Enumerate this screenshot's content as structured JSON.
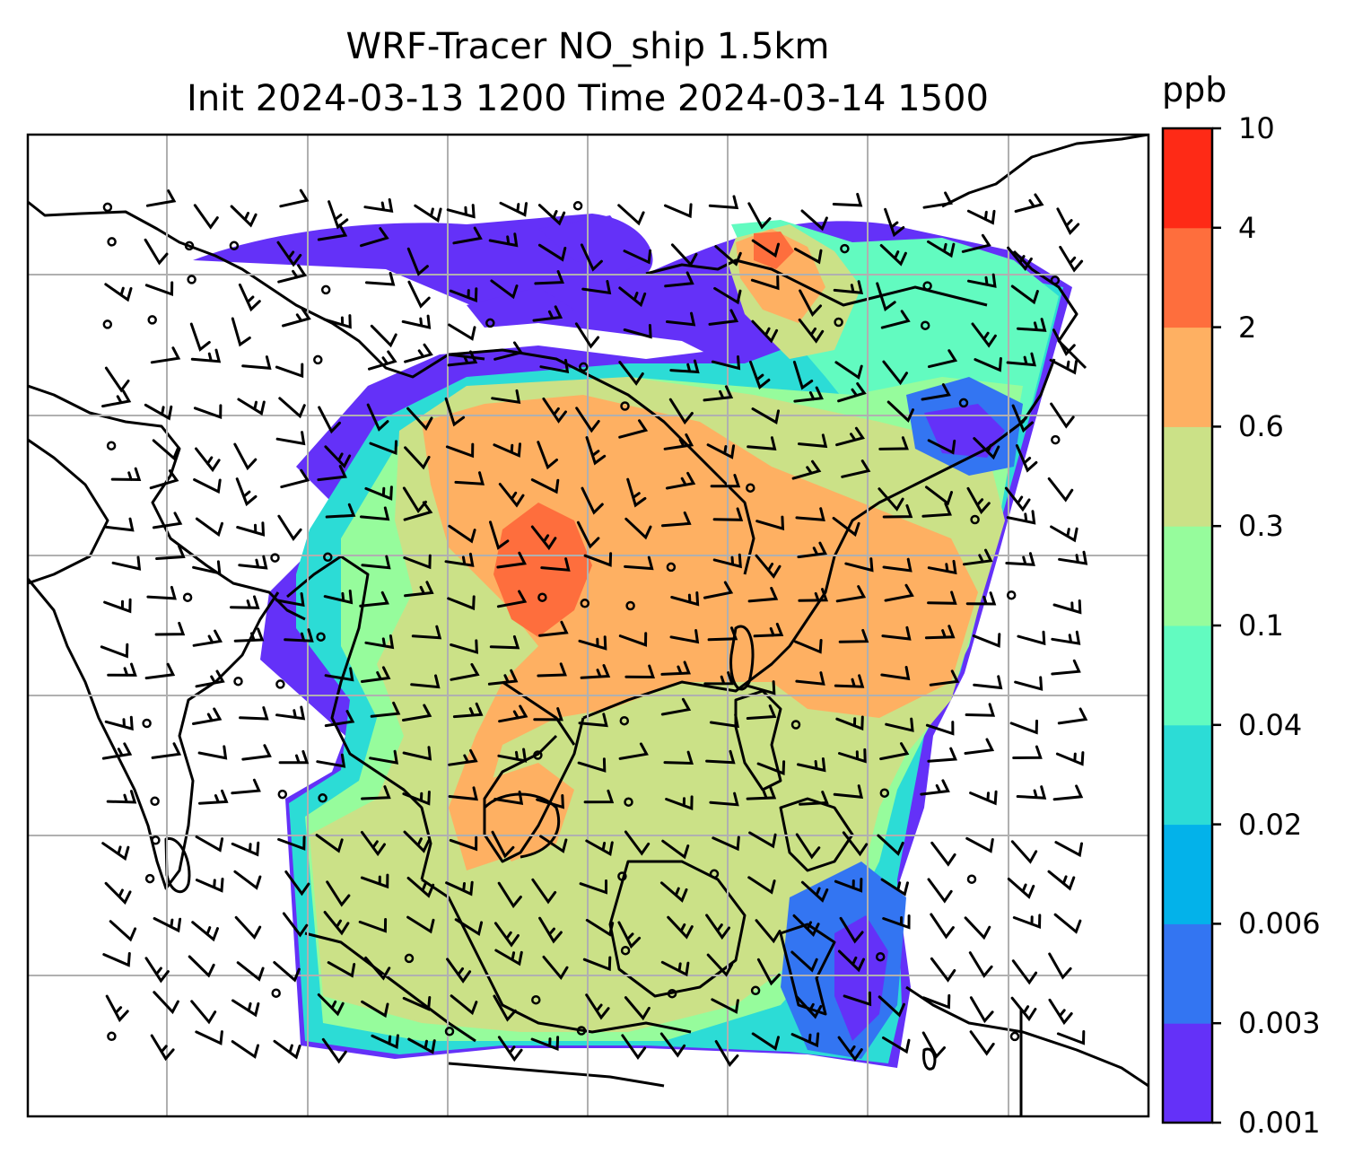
{
  "title": {
    "line1": "WRF-Tracer NO_ship 1.5km",
    "line2": "Init 2024-03-13 1200 Time 2024-03-14 1500"
  },
  "colorbar": {
    "unit": "ppb",
    "levels": [
      "0.001",
      "0.003",
      "0.006",
      "0.02",
      "0.04",
      "0.1",
      "0.3",
      "0.6",
      "2",
      "4",
      "10"
    ],
    "colors": [
      "#6431f8",
      "#3375f2",
      "#03b2ea",
      "#2cdcd6",
      "#62fbc0",
      "#96fc9c",
      "#cbe187",
      "#feb062",
      "#fe6e3d",
      "#fe2a16"
    ]
  },
  "map": {
    "gridlines": "on",
    "gridline_color": "#b0b0b0",
    "coastline_color": "#000000",
    "wind_barbs": "on"
  }
}
